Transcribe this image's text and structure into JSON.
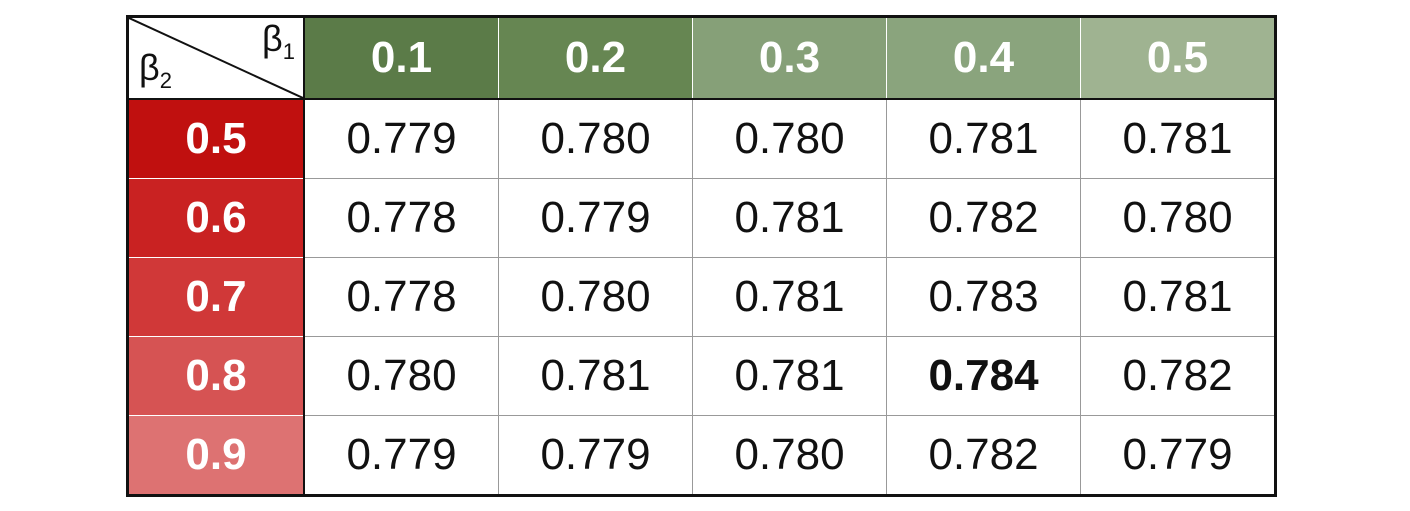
{
  "table": {
    "corner": {
      "row_symbol": "β",
      "row_subscript": "2",
      "column_symbol": "β",
      "column_subscript": "1"
    },
    "columns": [
      "0.1",
      "0.2",
      "0.3",
      "0.4",
      "0.5"
    ],
    "column_colors": [
      "#5b7b48",
      "#668652",
      "#86a078",
      "#8aa47d",
      "#9fb391"
    ],
    "rows": [
      {
        "label": "0.5",
        "color": "#c0100f",
        "cells": [
          "0.779",
          "0.780",
          "0.780",
          "0.781",
          "0.781"
        ]
      },
      {
        "label": "0.6",
        "color": "#c92222",
        "cells": [
          "0.778",
          "0.779",
          "0.781",
          "0.782",
          "0.780"
        ]
      },
      {
        "label": "0.7",
        "color": "#d03838",
        "cells": [
          "0.778",
          "0.780",
          "0.781",
          "0.783",
          "0.781"
        ]
      },
      {
        "label": "0.8",
        "color": "#d65353",
        "cells": [
          "0.780",
          "0.781",
          "0.781",
          "0.784",
          "0.782"
        ]
      },
      {
        "label": "0.9",
        "color": "#dd7272",
        "cells": [
          "0.779",
          "0.779",
          "0.780",
          "0.782",
          "0.779"
        ]
      }
    ],
    "bold_cell": {
      "row": 3,
      "column": 3
    }
  }
}
